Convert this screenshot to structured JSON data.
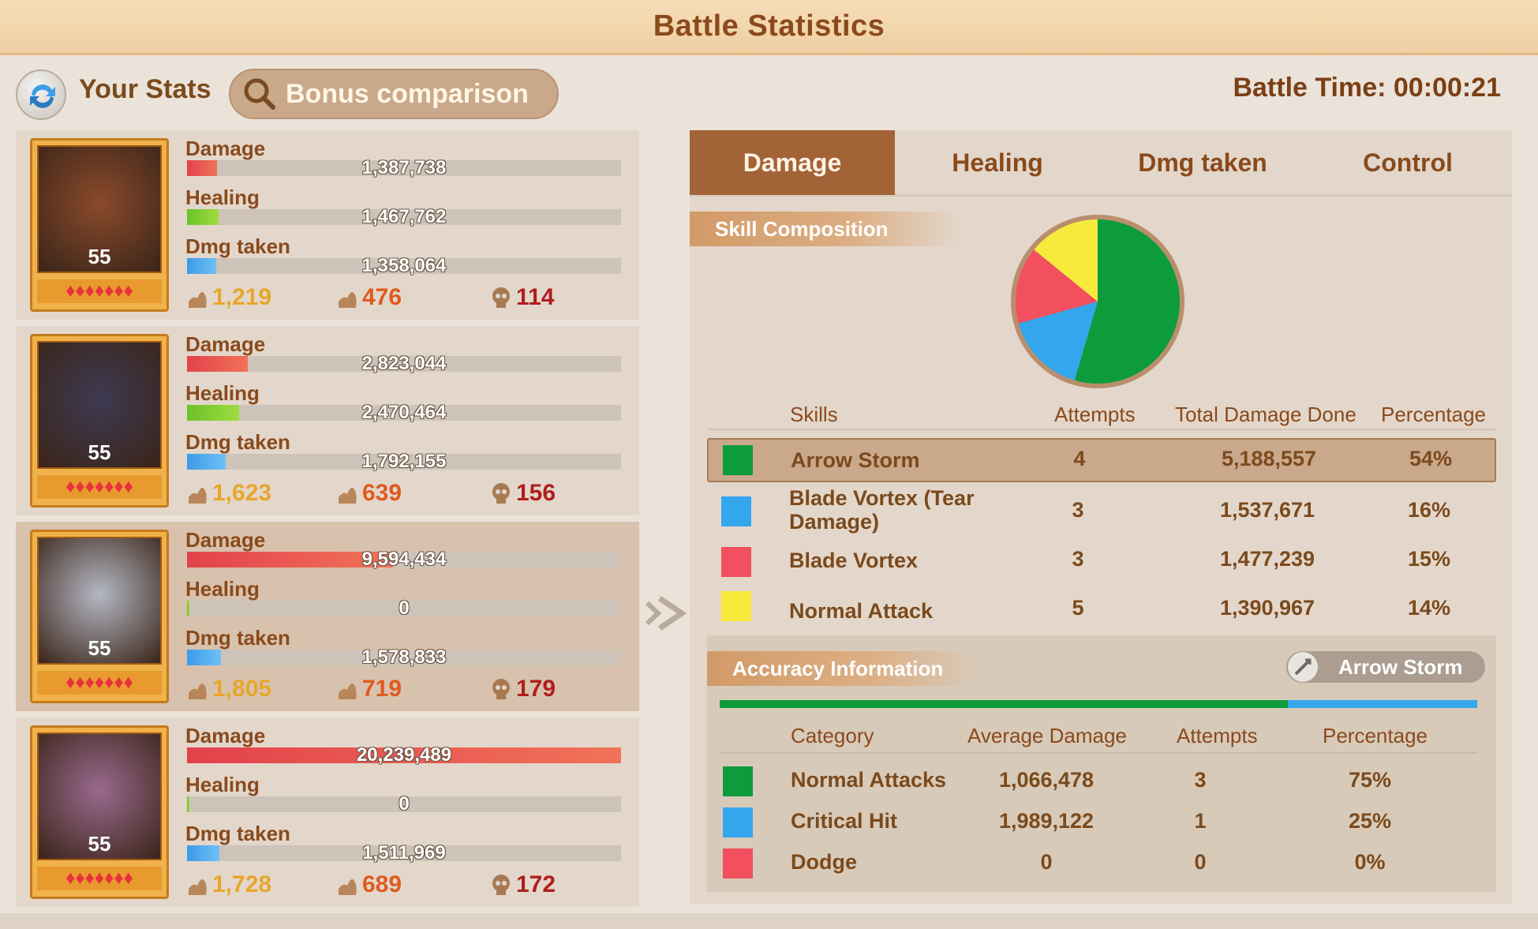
{
  "title": "Battle Statistics",
  "topbar": {
    "your_stats": "Your Stats",
    "bonus_comparison": "Bonus comparison",
    "battle_time": "Battle Time: 00:00:21"
  },
  "stat_labels": {
    "damage": "Damage",
    "healing": "Healing",
    "dmg_taken": "Dmg taken"
  },
  "heroes": [
    {
      "level": "55",
      "damage": "1,387,738",
      "damage_frac": 0.069,
      "healing": "1,467,762",
      "healing_frac": 0.073,
      "dmg_taken": "1,358,064",
      "dmg_taken_frac": 0.067,
      "severe": "1,219",
      "slight": "476",
      "dead": "114",
      "face": "#8a4a2c"
    },
    {
      "level": "55",
      "damage": "2,823,044",
      "damage_frac": 0.14,
      "healing": "2,470,464",
      "healing_frac": 0.12,
      "dmg_taken": "1,792,155",
      "dmg_taken_frac": 0.089,
      "severe": "1,623",
      "slight": "639",
      "dead": "156",
      "face": "#3e3a52"
    },
    {
      "level": "55",
      "damage": "9,594,434",
      "damage_frac": 0.474,
      "healing": "0",
      "healing_frac": 0.0,
      "dmg_taken": "1,578,833",
      "dmg_taken_frac": 0.078,
      "severe": "1,805",
      "slight": "719",
      "dead": "179",
      "face": "#b4b8c4"
    },
    {
      "level": "55",
      "damage": "20,239,489",
      "damage_frac": 1.0,
      "healing": "0",
      "healing_frac": 0.0,
      "dmg_taken": "1,511,969",
      "dmg_taken_frac": 0.075,
      "severe": "1,728",
      "slight": "689",
      "dead": "172",
      "face": "#9a6a8e"
    }
  ],
  "tabs": [
    "Damage",
    "Healing",
    "Dmg taken",
    "Control"
  ],
  "skill_composition": {
    "heading": "Skill Composition",
    "columns": [
      "Skills",
      "Attempts",
      "Total Damage Done",
      "Percentage"
    ],
    "rows": [
      {
        "name": "Arrow Storm",
        "attempts": "4",
        "total": "5,188,557",
        "pct": "54%",
        "color": "#0c9c3c"
      },
      {
        "name": "Blade Vortex (Tear Damage)",
        "attempts": "3",
        "total": "1,537,671",
        "pct": "16%",
        "color": "#33a6ee"
      },
      {
        "name": "Blade Vortex",
        "attempts": "3",
        "total": "1,477,239",
        "pct": "15%",
        "color": "#f2505e"
      },
      {
        "name": "Normal Attack",
        "attempts": "5",
        "total": "1,390,967",
        "pct": "14%",
        "color": "#f8ea3c"
      }
    ]
  },
  "chart_data": {
    "type": "pie",
    "categories": [
      "Arrow Storm",
      "Blade Vortex (Tear Damage)",
      "Blade Vortex",
      "Normal Attack"
    ],
    "values": [
      54,
      16,
      15,
      14
    ],
    "colors": [
      "#0c9c3c",
      "#33a6ee",
      "#f2505e",
      "#f8ea3c"
    ]
  },
  "accuracy": {
    "heading": "Accuracy Information",
    "selected_skill": "Arrow Storm",
    "bar": [
      {
        "frac": 0.75,
        "color": "#0c9c3c"
      },
      {
        "frac": 0.25,
        "color": "#33a6ee"
      }
    ],
    "columns": [
      "Category",
      "Average Damage",
      "Attempts",
      "Percentage"
    ],
    "rows": [
      {
        "name": "Normal Attacks",
        "avg": "1,066,478",
        "attempts": "3",
        "pct": "75%",
        "color": "#0c9c3c"
      },
      {
        "name": "Critical Hit",
        "avg": "1,989,122",
        "attempts": "1",
        "pct": "25%",
        "color": "#33a6ee"
      },
      {
        "name": "Dodge",
        "avg": "0",
        "attempts": "0",
        "pct": "0%",
        "color": "#f2505e"
      }
    ]
  }
}
